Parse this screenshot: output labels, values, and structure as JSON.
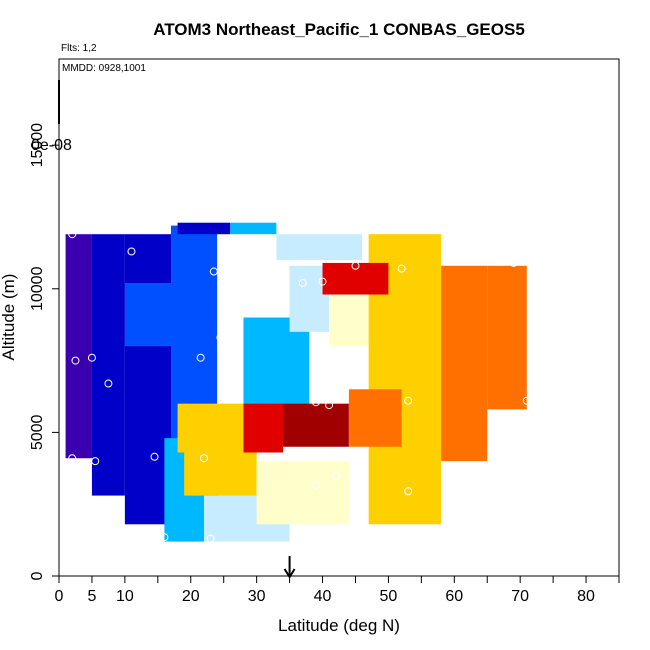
{
  "chart_data": {
    "type": "heatmap",
    "title": "ATOM3 Northeast_Pacific_1 CONBAS_GEOS5",
    "notes": [
      "Flts: 1,2",
      "MMDD: 0928,1001"
    ],
    "xlabel": "Latitude (deg N)",
    "ylabel": "Altitude (m)",
    "xlim": [
      0,
      85
    ],
    "ylim": [
      0,
      18000
    ],
    "xticks": [
      0,
      5,
      10,
      20,
      30,
      40,
      50,
      60,
      70,
      80
    ],
    "xtick_labels": [
      "0",
      "5",
      "10",
      "20",
      "30",
      "40",
      "50",
      "60",
      "70",
      "80"
    ],
    "xticks_minor": [
      15,
      25,
      35,
      45,
      55,
      65,
      75,
      85
    ],
    "yticks": [
      0,
      5000,
      10000,
      15000
    ],
    "ytick_labels": [
      "0",
      "5000",
      "10000",
      "15000"
    ],
    "colorbar_label": "0e-08",
    "colorbar_label_value": 15000,
    "arrow_marker_latitude": 35,
    "grid": false,
    "colormap": [
      "#3a00b0",
      "#0000c8",
      "#0050ff",
      "#00b8ff",
      "#c8ecff",
      "#ffffcc",
      "#ffd000",
      "#ff7000",
      "#e00000",
      "#a00000"
    ],
    "data_range": [
      0,
      1
    ],
    "regions": [
      {
        "lat": [
          1,
          5
        ],
        "alt": [
          4100,
          11900
        ],
        "value": 0.02
      },
      {
        "lat": [
          5,
          10
        ],
        "alt": [
          2800,
          11900
        ],
        "value": 0.1
      },
      {
        "lat": [
          10,
          17
        ],
        "alt": [
          1800,
          11900
        ],
        "value": 0.14
      },
      {
        "lat": [
          17,
          24
        ],
        "alt": [
          1200,
          12200
        ],
        "value": 0.2
      },
      {
        "lat": [
          10,
          18
        ],
        "alt": [
          8000,
          10200
        ],
        "value": 0.26
      },
      {
        "lat": [
          18,
          26
        ],
        "alt": [
          11900,
          12300
        ],
        "value": 0.12
      },
      {
        "lat": [
          26,
          33
        ],
        "alt": [
          11900,
          12300
        ],
        "value": 0.33
      },
      {
        "lat": [
          33,
          46
        ],
        "alt": [
          11000,
          11900
        ],
        "value": 0.44
      },
      {
        "lat": [
          16,
          22
        ],
        "alt": [
          1200,
          4800
        ],
        "value": 0.38
      },
      {
        "lat": [
          22,
          35
        ],
        "alt": [
          1200,
          2800
        ],
        "value": 0.47
      },
      {
        "lat": [
          28,
          38
        ],
        "alt": [
          5200,
          9000
        ],
        "value": 0.3
      },
      {
        "lat": [
          35,
          41
        ],
        "alt": [
          8500,
          10800
        ],
        "value": 0.48
      },
      {
        "lat": [
          41,
          47
        ],
        "alt": [
          8000,
          10800
        ],
        "value": 0.58
      },
      {
        "lat": [
          47,
          58
        ],
        "alt": [
          1800,
          11900
        ],
        "value": 0.68
      },
      {
        "lat": [
          58,
          65
        ],
        "alt": [
          4000,
          10800
        ],
        "value": 0.74
      },
      {
        "lat": [
          65,
          71
        ],
        "alt": [
          5800,
          10800
        ],
        "value": 0.8
      },
      {
        "lat": [
          19,
          30
        ],
        "alt": [
          2800,
          4300
        ],
        "value": 0.62
      },
      {
        "lat": [
          30,
          44
        ],
        "alt": [
          1800,
          4000
        ],
        "value": 0.6
      },
      {
        "lat": [
          18,
          28
        ],
        "alt": [
          4300,
          6000
        ],
        "value": 0.72
      },
      {
        "lat": [
          28,
          34
        ],
        "alt": [
          4300,
          6000
        ],
        "value": 0.86
      },
      {
        "lat": [
          34,
          44
        ],
        "alt": [
          4500,
          6000
        ],
        "value": 0.95
      },
      {
        "lat": [
          44,
          52
        ],
        "alt": [
          4500,
          6500
        ],
        "value": 0.82
      },
      {
        "lat": [
          40,
          50
        ],
        "alt": [
          9800,
          10900
        ],
        "value": 0.88
      }
    ],
    "points": [
      {
        "lat": 2,
        "alt": 11900
      },
      {
        "lat": 10.5,
        "alt": 12400
      },
      {
        "lat": 11,
        "alt": 11300
      },
      {
        "lat": 23.5,
        "alt": 10600
      },
      {
        "lat": 24.5,
        "alt": 8300
      },
      {
        "lat": 21.5,
        "alt": 7600
      },
      {
        "lat": 2.5,
        "alt": 7500
      },
      {
        "lat": 5,
        "alt": 7600
      },
      {
        "lat": 7.5,
        "alt": 6700
      },
      {
        "lat": 37,
        "alt": 10200
      },
      {
        "lat": 40,
        "alt": 10250
      },
      {
        "lat": 45,
        "alt": 10800
      },
      {
        "lat": 52,
        "alt": 10700
      },
      {
        "lat": 59,
        "alt": 11100
      },
      {
        "lat": 69,
        "alt": 10900
      },
      {
        "lat": 39,
        "alt": 6050
      },
      {
        "lat": 41,
        "alt": 5950
      },
      {
        "lat": 53,
        "alt": 6100
      },
      {
        "lat": 71,
        "alt": 6100
      },
      {
        "lat": 2,
        "alt": 4100
      },
      {
        "lat": 5.5,
        "alt": 4000
      },
      {
        "lat": 14.5,
        "alt": 4150
      },
      {
        "lat": 22,
        "alt": 4100
      },
      {
        "lat": 39,
        "alt": 3150
      },
      {
        "lat": 42,
        "alt": 3500
      },
      {
        "lat": 53,
        "alt": 2950
      },
      {
        "lat": 16,
        "alt": 1350
      },
      {
        "lat": 23,
        "alt": 1300
      }
    ]
  }
}
